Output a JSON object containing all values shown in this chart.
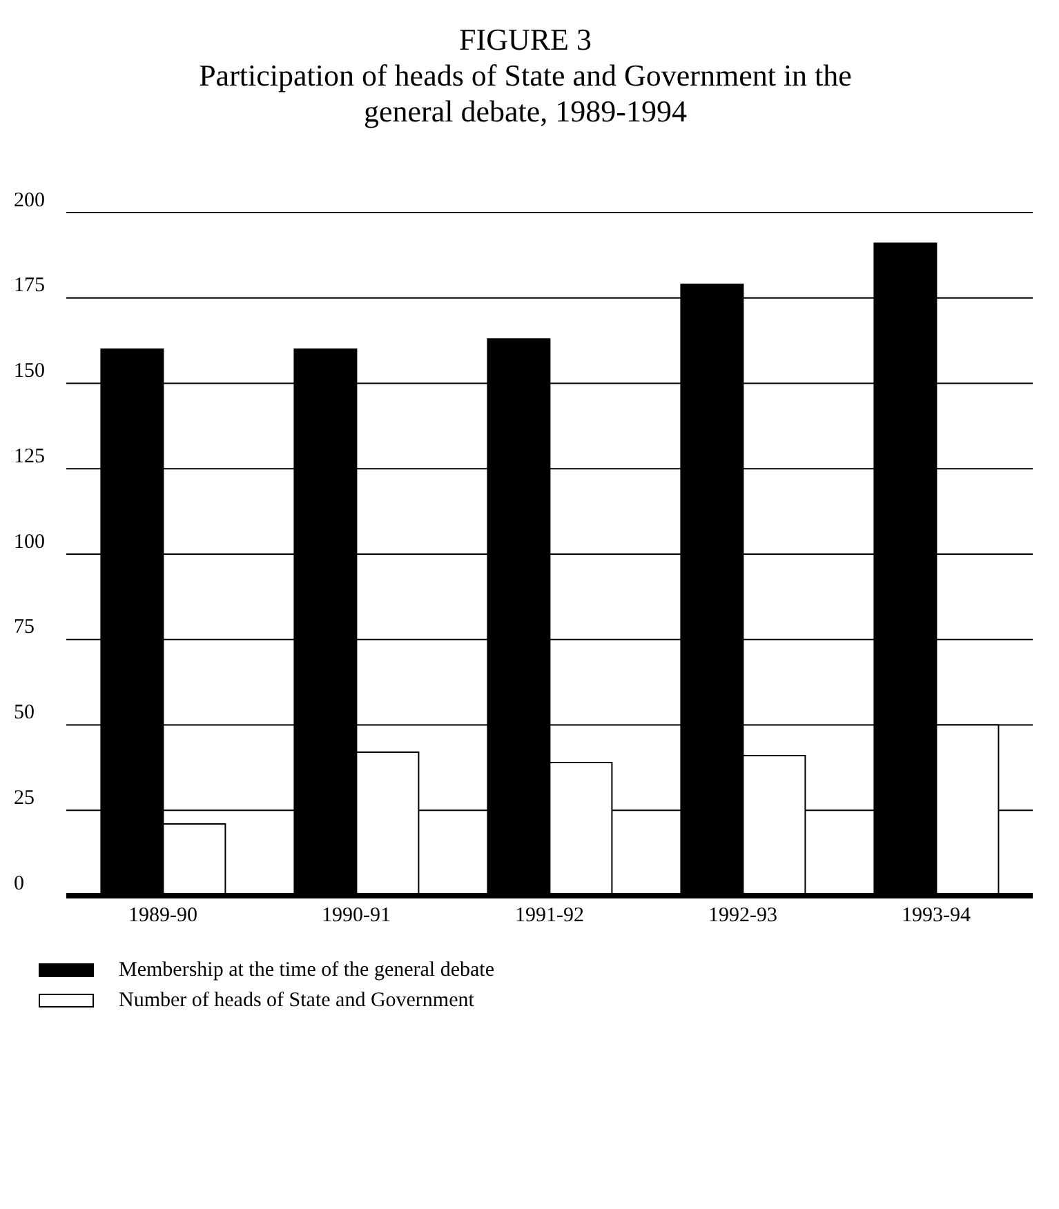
{
  "chart_data": {
    "type": "bar",
    "title": "FIGURE 3",
    "subtitle": "Participation of heads of State and Government in the general debate, 1989-1994",
    "categories": [
      "1989-90",
      "1990-91",
      "1991-92",
      "1992-93",
      "1993-94"
    ],
    "series": [
      {
        "name": "Membership at the time of the general debate",
        "color": "#000000",
        "values": [
          160,
          160,
          163,
          179,
          191
        ]
      },
      {
        "name": "Number of heads of State and Government",
        "color": "#ffffff",
        "values": [
          21,
          42,
          39,
          41,
          50
        ]
      }
    ],
    "ylim": [
      0,
      200
    ],
    "yticks": [
      0,
      25,
      50,
      75,
      100,
      125,
      150,
      175,
      200
    ],
    "grid": "y",
    "legend": "bottom"
  }
}
